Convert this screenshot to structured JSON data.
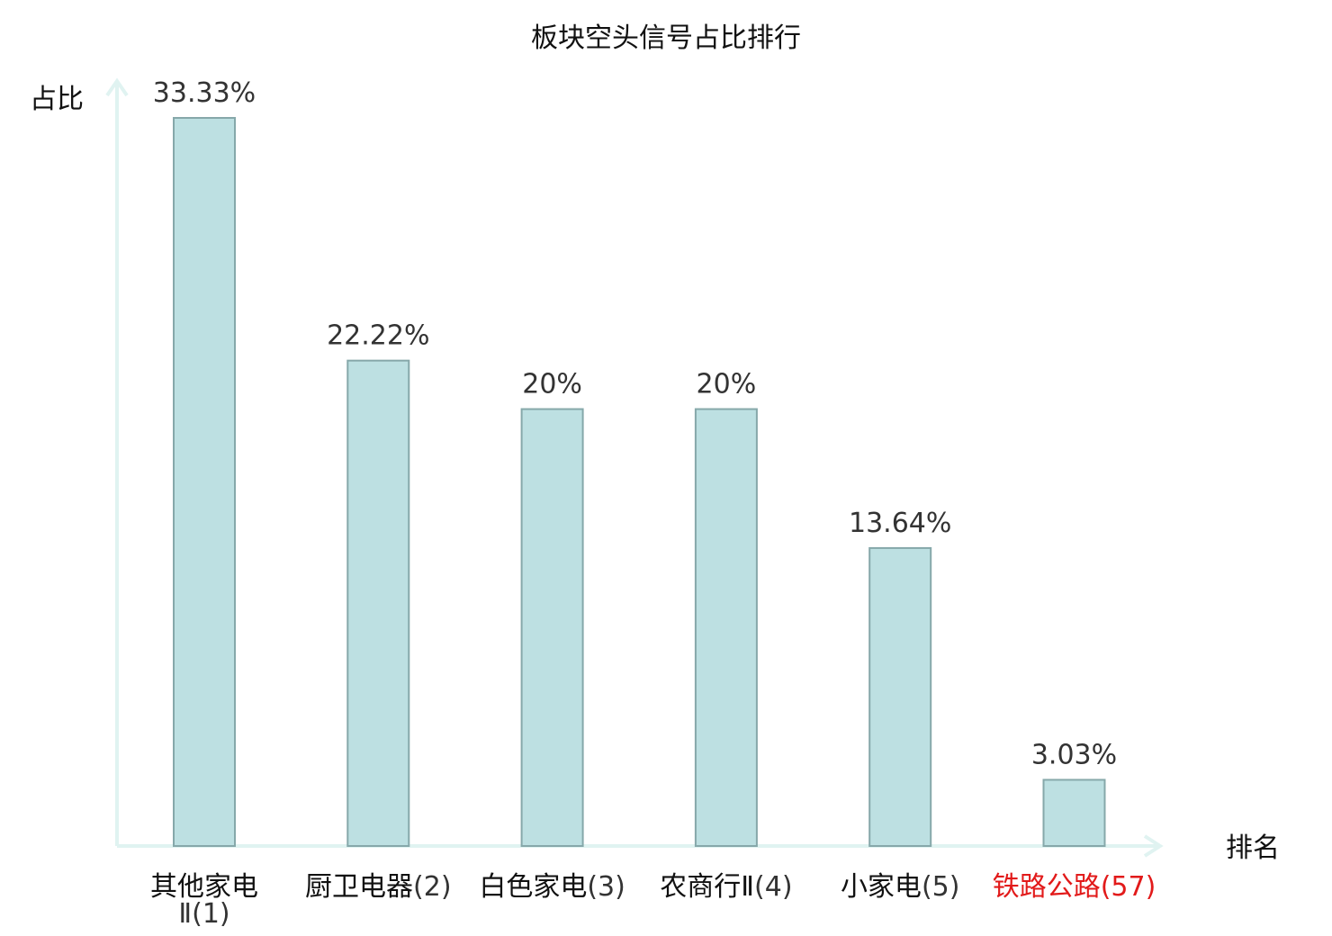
{
  "chart_data": {
    "type": "bar",
    "title": "板块空头信号占比排行",
    "ylabel": "占比",
    "xlabel": "排名",
    "categories": [
      {
        "name": "其他家电Ⅱ",
        "rank": "(1)",
        "highlight": false
      },
      {
        "name": "厨卫电器",
        "rank": "(2)",
        "highlight": false
      },
      {
        "name": "白色家电",
        "rank": "(3)",
        "highlight": false
      },
      {
        "name": "农商行Ⅱ",
        "rank": "(4)",
        "highlight": false
      },
      {
        "name": "小家电",
        "rank": "(5)",
        "highlight": false
      },
      {
        "name": "铁路公路",
        "rank": "(57)",
        "highlight": true
      }
    ],
    "values": [
      33.33,
      22.22,
      20,
      20,
      13.64,
      3.03
    ],
    "value_labels": [
      "33.33%",
      "22.22%",
      "20%",
      "20%",
      "13.64%",
      "3.03%"
    ],
    "ylim": [
      0,
      33.33
    ],
    "grid": false,
    "colors": {
      "bar_fill": "#bde0e2",
      "bar_stroke": "#86a8aa",
      "axis": "#e0f3f1",
      "label_text": "#111111",
      "rank_text": "#333333",
      "highlight": "#e21a1a"
    }
  }
}
